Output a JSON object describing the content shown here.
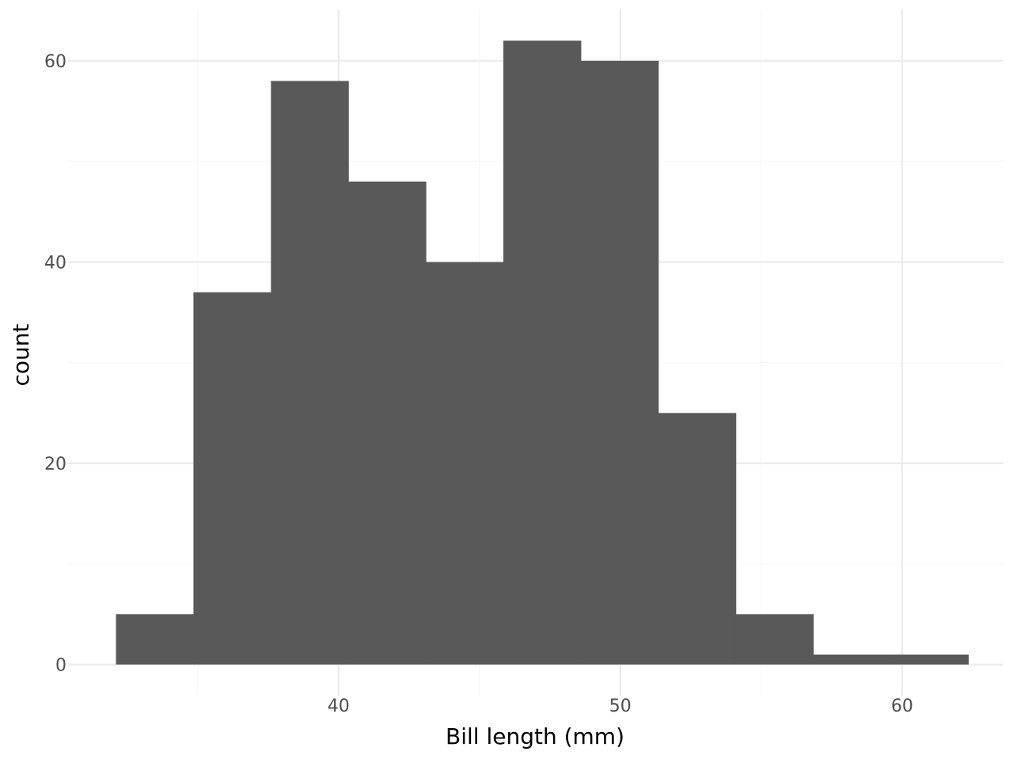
{
  "chart_data": {
    "type": "bar",
    "xlabel": "Bill length (mm)",
    "ylabel": "count",
    "xlim": [
      30.4,
      63.6
    ],
    "ylim": [
      -3.1,
      65.1
    ],
    "bin_edges": [
      32.1,
      34.85,
      37.6,
      40.35,
      43.1,
      45.85,
      48.6,
      51.35,
      54.1,
      56.85,
      59.6
    ],
    "bin_width": 2.75,
    "values": [
      5,
      37,
      58,
      48,
      40,
      62,
      60,
      25,
      5,
      1,
      1
    ],
    "x_ticks": [
      40,
      50,
      60
    ],
    "x_tick_labels": [
      "40",
      "50",
      "60"
    ],
    "x_minor_ticks": [
      35,
      45,
      55
    ],
    "y_ticks": [
      0,
      20,
      40,
      60
    ],
    "y_tick_labels": [
      "0",
      "20",
      "40",
      "60"
    ],
    "y_minor_ticks": [
      10,
      30,
      50
    ],
    "grid": true,
    "bar_color": "#595959",
    "grid_major_color": "#ebebeb",
    "grid_minor_color": "#f5f5f5"
  }
}
